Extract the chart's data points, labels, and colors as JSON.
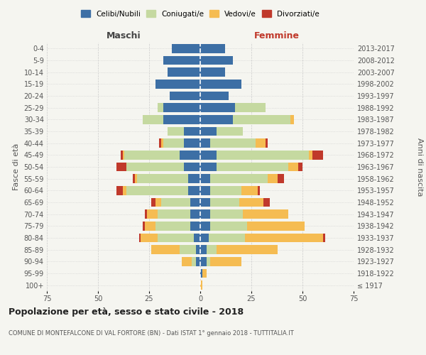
{
  "age_groups": [
    "100+",
    "95-99",
    "90-94",
    "85-89",
    "80-84",
    "75-79",
    "70-74",
    "65-69",
    "60-64",
    "55-59",
    "50-54",
    "45-49",
    "40-44",
    "35-39",
    "30-34",
    "25-29",
    "20-24",
    "15-19",
    "10-14",
    "5-9",
    "0-4"
  ],
  "birth_years": [
    "≤ 1917",
    "1918-1922",
    "1923-1927",
    "1928-1932",
    "1933-1937",
    "1938-1942",
    "1943-1947",
    "1948-1952",
    "1953-1957",
    "1958-1962",
    "1963-1967",
    "1968-1972",
    "1973-1977",
    "1978-1982",
    "1983-1987",
    "1988-1992",
    "1993-1997",
    "1998-2002",
    "2003-2007",
    "2008-2012",
    "2013-2017"
  ],
  "colors": {
    "celibi": "#3d6fa5",
    "coniugati": "#c5d9a0",
    "vedovi": "#f5bc52",
    "divorziati": "#c0392b"
  },
  "maschi": {
    "celibi": [
      0,
      0,
      2,
      2,
      3,
      5,
      5,
      5,
      6,
      6,
      8,
      10,
      8,
      8,
      18,
      18,
      15,
      22,
      16,
      18,
      14
    ],
    "coniugati": [
      0,
      0,
      2,
      8,
      18,
      17,
      16,
      14,
      30,
      25,
      28,
      27,
      10,
      8,
      10,
      3,
      0,
      0,
      0,
      0,
      0
    ],
    "vedovi": [
      0,
      0,
      5,
      14,
      8,
      5,
      5,
      3,
      2,
      1,
      0,
      1,
      1,
      0,
      0,
      0,
      0,
      0,
      0,
      0,
      0
    ],
    "divorziati": [
      0,
      0,
      0,
      0,
      1,
      1,
      1,
      2,
      3,
      1,
      5,
      1,
      1,
      0,
      0,
      0,
      0,
      0,
      0,
      0,
      0
    ]
  },
  "femmine": {
    "celibi": [
      0,
      1,
      3,
      3,
      4,
      5,
      5,
      5,
      5,
      5,
      8,
      8,
      5,
      8,
      16,
      17,
      14,
      20,
      12,
      16,
      12
    ],
    "coniugati": [
      0,
      0,
      2,
      5,
      18,
      18,
      16,
      14,
      15,
      28,
      35,
      45,
      22,
      13,
      28,
      15,
      0,
      0,
      0,
      0,
      0
    ],
    "vedovi": [
      1,
      2,
      15,
      30,
      38,
      28,
      22,
      12,
      8,
      5,
      5,
      2,
      5,
      0,
      2,
      0,
      0,
      0,
      0,
      0,
      0
    ],
    "divorziati": [
      0,
      0,
      0,
      0,
      1,
      0,
      0,
      3,
      1,
      3,
      2,
      5,
      1,
      0,
      0,
      0,
      0,
      0,
      0,
      0,
      0
    ]
  },
  "title": "Popolazione per età, sesso e stato civile - 2018",
  "subtitle": "COMUNE DI MONTEFALCONE DI VAL FORTORE (BN) - Dati ISTAT 1° gennaio 2018 - TUTTITALIA.IT",
  "xlabel_left": "Maschi",
  "xlabel_right": "Femmine",
  "ylabel_left": "Fasce di età",
  "ylabel_right": "Anni di nascita",
  "xlim": 75,
  "legend_labels": [
    "Celibi/Nubili",
    "Coniugati/e",
    "Vedovi/e",
    "Divorziati/e"
  ],
  "bg_color": "#f5f5f0",
  "grid_color": "#cccccc"
}
